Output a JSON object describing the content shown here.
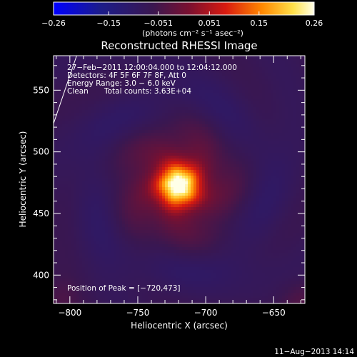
{
  "chart_data": {
    "type": "heatmap",
    "title": "Reconstructed RHESSI Image",
    "xlabel": "Heliocentric X (arcsec)",
    "ylabel": "Heliocentric Y (arcsec)",
    "xlim": [
      -812,
      -627
    ],
    "ylim": [
      377,
      578
    ],
    "x_ticks": [
      -800,
      -750,
      -700,
      -650
    ],
    "y_ticks": [
      400,
      450,
      500,
      550
    ],
    "x_tick_labels": [
      "−800",
      "−750",
      "−700",
      "−650"
    ],
    "y_tick_labels": [
      "400",
      "450",
      "500",
      "550"
    ],
    "peak": {
      "x": -720,
      "y": 473
    },
    "limb_line": {
      "x": [
        -812,
        -795
      ],
      "y": [
        523,
        578
      ]
    },
    "colorbar": {
      "min": -0.26,
      "max": 0.26,
      "ticks": [
        -0.26,
        -0.15,
        -0.051,
        0.051,
        0.15,
        0.26
      ],
      "tick_labels": [
        "−0.26",
        "−0.15",
        "−0.051",
        "0.051",
        "0.15",
        "0.26"
      ],
      "unit_label": "(photons cm⁻² s⁻¹ asec⁻²)"
    },
    "annotations": {
      "time_range": "27−Feb−2011 12:00:04.000 to 12:04:12.000",
      "detectors": "Detectors: 4F 5F 6F 7F 8F, Att 0",
      "energy": "Energy Range: 3.0 − 6.0 keV",
      "clean_label": "Clean",
      "counts": "Total counts: 3.63E+04",
      "peak_text": "Position of Peak = [−720,473]"
    },
    "footer_date": "11−Aug−2013 14:14"
  }
}
